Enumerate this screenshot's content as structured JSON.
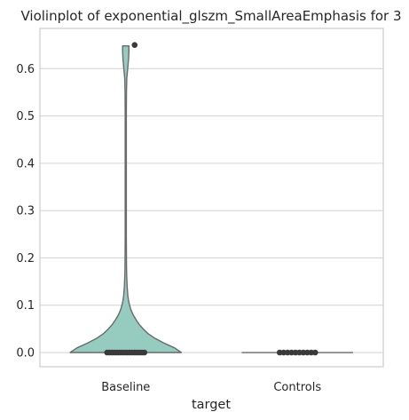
{
  "chart_data": {
    "type": "violin",
    "title": "Violinplot of exponential_glszm_SmallAreaEmphasis for 3",
    "xlabel": "target",
    "ylabel": "",
    "categories": [
      "Baseline",
      "Controls"
    ],
    "ylim": [
      -0.03,
      0.685
    ],
    "yticks": [
      0.0,
      0.1,
      0.2,
      0.3,
      0.4,
      0.5,
      0.6
    ],
    "ytick_labels": [
      "0.0",
      "0.1",
      "0.2",
      "0.3",
      "0.4",
      "0.5",
      "0.6"
    ],
    "grid": true,
    "colors": {
      "fill": "#96cbc0",
      "edge": "#6a6a6a",
      "points": "#3a3a3a",
      "grid": "#d6d6d6",
      "spine": "#cccccc"
    },
    "violins": [
      {
        "category": "Baseline",
        "density_profile": [
          [
            0.0,
            0.8
          ],
          [
            0.01,
            0.7
          ],
          [
            0.02,
            0.55
          ],
          [
            0.03,
            0.42
          ],
          [
            0.04,
            0.32
          ],
          [
            0.05,
            0.25
          ],
          [
            0.06,
            0.19
          ],
          [
            0.07,
            0.145
          ],
          [
            0.08,
            0.105
          ],
          [
            0.09,
            0.075
          ],
          [
            0.1,
            0.055
          ],
          [
            0.11,
            0.04
          ],
          [
            0.12,
            0.03
          ],
          [
            0.14,
            0.02
          ],
          [
            0.16,
            0.014
          ],
          [
            0.18,
            0.011
          ],
          [
            0.2,
            0.01
          ],
          [
            0.25,
            0.008
          ],
          [
            0.3,
            0.008
          ],
          [
            0.4,
            0.008
          ],
          [
            0.5,
            0.008
          ],
          [
            0.55,
            0.01
          ],
          [
            0.58,
            0.015
          ],
          [
            0.6,
            0.028
          ],
          [
            0.62,
            0.04
          ],
          [
            0.635,
            0.045
          ],
          [
            0.648,
            0.045
          ]
        ],
        "points": [
          0.0,
          0.0,
          0.0,
          0.0,
          0.0,
          0.0,
          0.0,
          0.0,
          0.0,
          0.0,
          0.0,
          0.0,
          0.0,
          0.0,
          0.0,
          0.0,
          0.65
        ]
      },
      {
        "category": "Controls",
        "density_profile": [
          [
            0.0,
            0.8
          ]
        ],
        "points": [
          0.0,
          0.0,
          0.0,
          0.0,
          0.0,
          0.0,
          0.0,
          0.0,
          0.0,
          0.0
        ]
      }
    ]
  }
}
